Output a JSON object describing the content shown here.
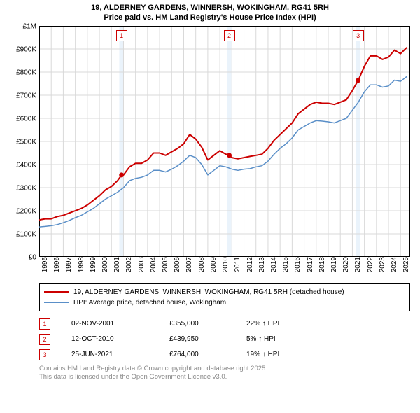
{
  "title": {
    "line1": "19, ALDERNEY GARDENS, WINNERSH, WOKINGHAM, RG41 5RH",
    "line2": "Price paid vs. HM Land Registry's House Price Index (HPI)",
    "fontsize": 11
  },
  "chart": {
    "type": "line",
    "x_start_year": 1995,
    "x_end_year": 2025.8,
    "x_ticks": [
      1995,
      1996,
      1997,
      1998,
      1999,
      2000,
      2001,
      2002,
      2003,
      2004,
      2005,
      2006,
      2007,
      2008,
      2009,
      2010,
      2011,
      2012,
      2013,
      2014,
      2015,
      2016,
      2017,
      2018,
      2019,
      2020,
      2021,
      2022,
      2023,
      2024,
      2025
    ],
    "y_min": 0,
    "y_max": 1000000,
    "y_ticks": [
      {
        "v": 0,
        "label": "£0"
      },
      {
        "v": 100000,
        "label": "£100K"
      },
      {
        "v": 200000,
        "label": "£200K"
      },
      {
        "v": 300000,
        "label": "£300K"
      },
      {
        "v": 400000,
        "label": "£400K"
      },
      {
        "v": 500000,
        "label": "£500K"
      },
      {
        "v": 600000,
        "label": "£600K"
      },
      {
        "v": 700000,
        "label": "£700K"
      },
      {
        "v": 800000,
        "label": "£800K"
      },
      {
        "v": 900000,
        "label": "£900K"
      },
      {
        "v": 1000000,
        "label": "£1M"
      }
    ],
    "grid_color": "#d9d9d9",
    "axis_color": "#000000",
    "background": "#ffffff",
    "band_fill": "#eaf3fb",
    "label_fontsize": 10,
    "series": [
      {
        "name": "19, ALDERNEY GARDENS, WINNERSH, WOKINGHAM, RG41 5RH (detached house)",
        "color": "#cc0000",
        "width": 2,
        "points": [
          [
            1995.0,
            160000
          ],
          [
            1995.5,
            165000
          ],
          [
            1996.0,
            165000
          ],
          [
            1996.5,
            175000
          ],
          [
            1997.0,
            180000
          ],
          [
            1997.5,
            190000
          ],
          [
            1998.0,
            200000
          ],
          [
            1998.5,
            210000
          ],
          [
            1999.0,
            225000
          ],
          [
            1999.5,
            245000
          ],
          [
            2000.0,
            265000
          ],
          [
            2000.5,
            290000
          ],
          [
            2001.0,
            305000
          ],
          [
            2001.5,
            330000
          ],
          [
            2001.84,
            355000
          ],
          [
            2002.0,
            355000
          ],
          [
            2002.5,
            390000
          ],
          [
            2003.0,
            405000
          ],
          [
            2003.5,
            405000
          ],
          [
            2004.0,
            420000
          ],
          [
            2004.5,
            450000
          ],
          [
            2005.0,
            450000
          ],
          [
            2005.5,
            440000
          ],
          [
            2006.0,
            455000
          ],
          [
            2006.5,
            470000
          ],
          [
            2007.0,
            490000
          ],
          [
            2007.5,
            530000
          ],
          [
            2008.0,
            510000
          ],
          [
            2008.5,
            475000
          ],
          [
            2009.0,
            420000
          ],
          [
            2009.5,
            440000
          ],
          [
            2010.0,
            460000
          ],
          [
            2010.5,
            445000
          ],
          [
            2010.78,
            439950
          ],
          [
            2011.0,
            430000
          ],
          [
            2011.5,
            425000
          ],
          [
            2012.0,
            430000
          ],
          [
            2012.5,
            435000
          ],
          [
            2013.0,
            440000
          ],
          [
            2013.5,
            445000
          ],
          [
            2014.0,
            470000
          ],
          [
            2014.5,
            505000
          ],
          [
            2015.0,
            530000
          ],
          [
            2015.5,
            555000
          ],
          [
            2016.0,
            580000
          ],
          [
            2016.5,
            620000
          ],
          [
            2017.0,
            640000
          ],
          [
            2017.5,
            660000
          ],
          [
            2018.0,
            670000
          ],
          [
            2018.5,
            665000
          ],
          [
            2019.0,
            665000
          ],
          [
            2019.5,
            660000
          ],
          [
            2020.0,
            670000
          ],
          [
            2020.5,
            680000
          ],
          [
            2021.0,
            720000
          ],
          [
            2021.48,
            764000
          ],
          [
            2021.49,
            764000
          ],
          [
            2022.0,
            825000
          ],
          [
            2022.5,
            870000
          ],
          [
            2023.0,
            870000
          ],
          [
            2023.5,
            855000
          ],
          [
            2024.0,
            865000
          ],
          [
            2024.5,
            895000
          ],
          [
            2025.0,
            880000
          ],
          [
            2025.5,
            905000
          ]
        ]
      },
      {
        "name": "HPI: Average price, detached house, Wokingham",
        "color": "#5a8fc8",
        "width": 1.5,
        "points": [
          [
            1995.0,
            130000
          ],
          [
            1995.5,
            132000
          ],
          [
            1996.0,
            135000
          ],
          [
            1996.5,
            140000
          ],
          [
            1997.0,
            148000
          ],
          [
            1997.5,
            158000
          ],
          [
            1998.0,
            170000
          ],
          [
            1998.5,
            180000
          ],
          [
            1999.0,
            195000
          ],
          [
            1999.5,
            210000
          ],
          [
            2000.0,
            230000
          ],
          [
            2000.5,
            250000
          ],
          [
            2001.0,
            265000
          ],
          [
            2001.5,
            280000
          ],
          [
            2002.0,
            300000
          ],
          [
            2002.5,
            330000
          ],
          [
            2003.0,
            340000
          ],
          [
            2003.5,
            345000
          ],
          [
            2004.0,
            355000
          ],
          [
            2004.5,
            375000
          ],
          [
            2005.0,
            375000
          ],
          [
            2005.5,
            368000
          ],
          [
            2006.0,
            380000
          ],
          [
            2006.5,
            395000
          ],
          [
            2007.0,
            415000
          ],
          [
            2007.5,
            440000
          ],
          [
            2008.0,
            430000
          ],
          [
            2008.5,
            400000
          ],
          [
            2009.0,
            355000
          ],
          [
            2009.5,
            375000
          ],
          [
            2010.0,
            395000
          ],
          [
            2010.5,
            390000
          ],
          [
            2011.0,
            380000
          ],
          [
            2011.5,
            375000
          ],
          [
            2012.0,
            380000
          ],
          [
            2012.5,
            382000
          ],
          [
            2013.0,
            390000
          ],
          [
            2013.5,
            395000
          ],
          [
            2014.0,
            415000
          ],
          [
            2014.5,
            445000
          ],
          [
            2015.0,
            470000
          ],
          [
            2015.5,
            490000
          ],
          [
            2016.0,
            515000
          ],
          [
            2016.5,
            550000
          ],
          [
            2017.0,
            565000
          ],
          [
            2017.5,
            580000
          ],
          [
            2018.0,
            590000
          ],
          [
            2018.5,
            588000
          ],
          [
            2019.0,
            585000
          ],
          [
            2019.5,
            580000
          ],
          [
            2020.0,
            590000
          ],
          [
            2020.5,
            600000
          ],
          [
            2021.0,
            635000
          ],
          [
            2021.5,
            670000
          ],
          [
            2022.0,
            715000
          ],
          [
            2022.5,
            745000
          ],
          [
            2023.0,
            745000
          ],
          [
            2023.5,
            735000
          ],
          [
            2024.0,
            740000
          ],
          [
            2024.5,
            765000
          ],
          [
            2025.0,
            760000
          ],
          [
            2025.5,
            780000
          ]
        ]
      }
    ],
    "event_bands": [
      {
        "from": 2001.65,
        "to": 2002.0
      },
      {
        "from": 2010.6,
        "to": 2010.95
      },
      {
        "from": 2021.3,
        "to": 2021.65
      }
    ],
    "event_markers": [
      {
        "n": "1",
        "x": 2001.84,
        "y": 355000,
        "box_color": "#cc0000"
      },
      {
        "n": "2",
        "x": 2010.78,
        "y": 439950,
        "box_color": "#cc0000"
      },
      {
        "n": "3",
        "x": 2021.48,
        "y": 764000,
        "box_color": "#cc0000"
      }
    ],
    "marker_box_border": "#cc0000",
    "marker_box_top_offset": 6
  },
  "legend": {
    "items": [
      {
        "color": "#cc0000",
        "width": 2,
        "label": "19, ALDERNEY GARDENS, WINNERSH, WOKINGHAM, RG41 5RH (detached house)"
      },
      {
        "color": "#5a8fc8",
        "width": 1.5,
        "label": "HPI: Average price, detached house, Wokingham"
      }
    ]
  },
  "markers_table": [
    {
      "n": "1",
      "date": "02-NOV-2001",
      "price": "£355,000",
      "delta": "22% ↑ HPI",
      "box_color": "#cc0000"
    },
    {
      "n": "2",
      "date": "12-OCT-2010",
      "price": "£439,950",
      "delta": "5% ↑ HPI",
      "box_color": "#cc0000"
    },
    {
      "n": "3",
      "date": "25-JUN-2021",
      "price": "£764,000",
      "delta": "19% ↑ HPI",
      "box_color": "#cc0000"
    }
  ],
  "attribution": {
    "line1": "Contains HM Land Registry data © Crown copyright and database right 2025.",
    "line2": "This data is licensed under the Open Government Licence v3.0."
  }
}
